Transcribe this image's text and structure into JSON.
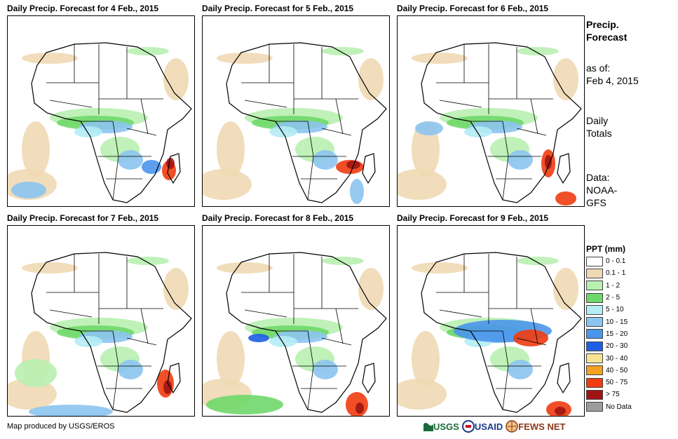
{
  "panels": [
    {
      "title": "Daily Precip. Forecast for 4 Feb., 2015",
      "day": 4
    },
    {
      "title": "Daily Precip. Forecast for 5 Feb., 2015",
      "day": 5
    },
    {
      "title": "Daily Precip. Forecast for 6 Feb., 2015",
      "day": 6
    },
    {
      "title": "Daily Precip. Forecast for 7 Feb., 2015",
      "day": 7
    },
    {
      "title": "Daily Precip. Forecast for 8 Feb., 2015",
      "day": 8
    },
    {
      "title": "Daily Precip. Forecast for 9 Feb., 2015",
      "day": 9
    }
  ],
  "sidebar": {
    "title_line1": "Precip.",
    "title_line2": "Forecast",
    "asof_label": "as of:",
    "asof_date": "Feb 4, 2015",
    "totals_line1": "Daily",
    "totals_line2": "Totals",
    "data_label": "Data:",
    "data_source_line1": "NOAA-",
    "data_source_line2": "GFS"
  },
  "legend": {
    "title": "PPT (mm)",
    "items": [
      {
        "label": "0 - 0.1",
        "color": "#ffffff"
      },
      {
        "label": "0.1 - 1",
        "color": "#efd9b4"
      },
      {
        "label": "1 - 2",
        "color": "#b8f0b0"
      },
      {
        "label": "2 - 5",
        "color": "#6fd86a"
      },
      {
        "label": "5 - 10",
        "color": "#b4ecf4"
      },
      {
        "label": "10 - 15",
        "color": "#8cc4f0"
      },
      {
        "label": "15 - 20",
        "color": "#4a96ec"
      },
      {
        "label": "20 - 30",
        "color": "#1e5ee4"
      },
      {
        "label": "30 - 40",
        "color": "#f8e490"
      },
      {
        "label": "40 - 50",
        "color": "#f4a020"
      },
      {
        "label": "50 - 75",
        "color": "#f03c10"
      },
      {
        "label": "> 75",
        "color": "#a01414"
      },
      {
        "label": "No Data",
        "color": "#9c9c9c"
      }
    ]
  },
  "footer": {
    "credit": "Map produced by USGS/EROS"
  },
  "logos": {
    "usgs": "USGS",
    "usaid": "USAID",
    "fewsnet": "FEWS NET"
  }
}
